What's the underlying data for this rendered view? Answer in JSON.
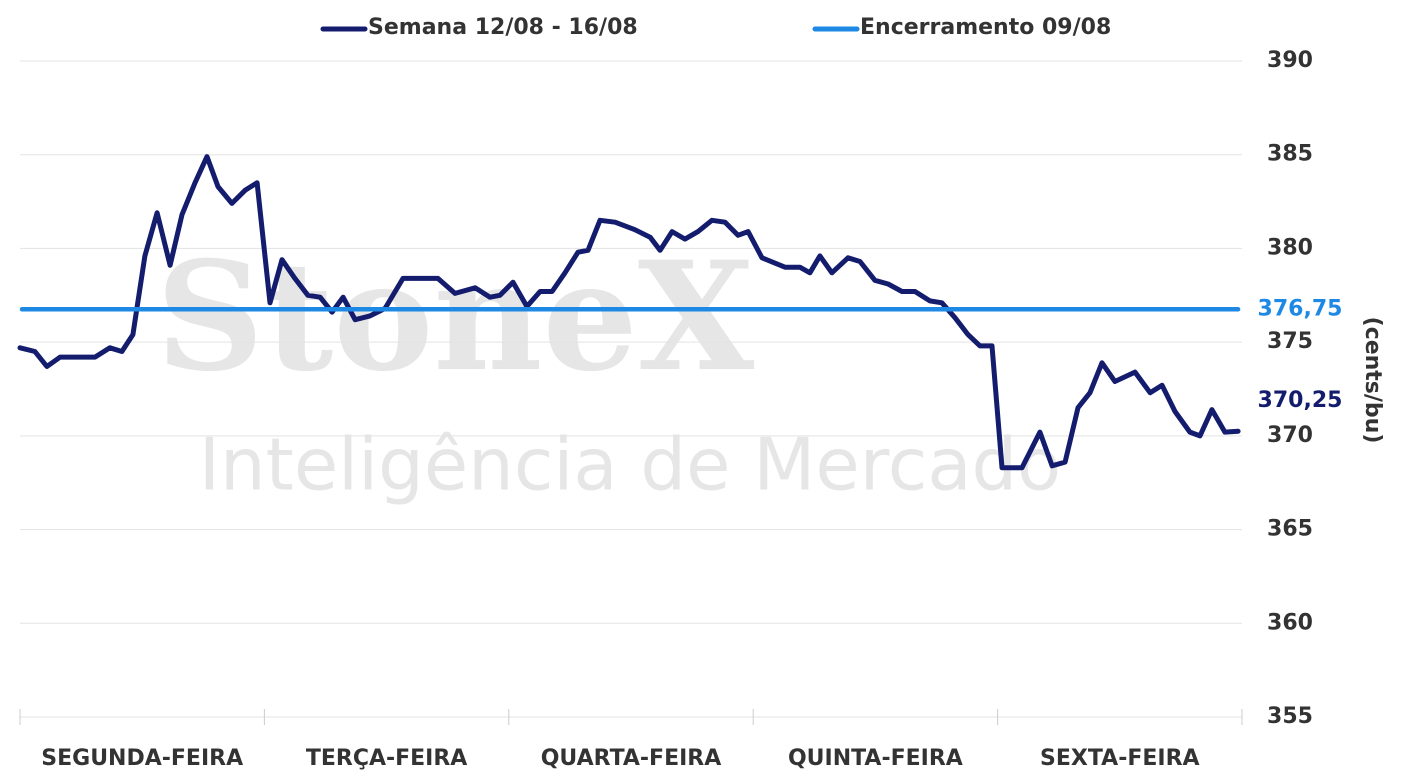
{
  "chart_data": {
    "type": "line",
    "watermark": [
      "StoneX",
      "Inteligência de Mercado"
    ],
    "categories": [
      "SEGUNDA-FEIRA",
      "TERÇA-FEIRA",
      "QUARTA-FEIRA",
      "QUINTA-FEIRA",
      "SEXTA-FEIRA"
    ],
    "y_label": "(cents/bu)",
    "xlim": [
      0,
      5
    ],
    "xticks": [
      0,
      1,
      2,
      3,
      4,
      5
    ],
    "ylim": [
      355,
      390
    ],
    "yticks": [
      355,
      360,
      365,
      370,
      375,
      380,
      385,
      390
    ],
    "grid": true,
    "legend": "top",
    "series": [
      {
        "name": "Semana 12/08 - 16/08",
        "color": "#141c6e",
        "end_label": "370,25",
        "x": [
          0,
          0.061,
          0.11,
          0.164,
          0.225,
          0.307,
          0.368,
          0.417,
          0.462,
          0.511,
          0.561,
          0.614,
          0.663,
          0.716,
          0.765,
          0.81,
          0.867,
          0.921,
          0.97,
          1.023,
          1.072,
          1.125,
          1.178,
          1.228,
          1.277,
          1.322,
          1.371,
          1.432,
          1.494,
          1.567,
          1.637,
          1.71,
          1.78,
          1.862,
          1.923,
          1.964,
          2.017,
          2.074,
          2.128,
          2.177,
          2.23,
          2.283,
          2.324,
          2.373,
          2.435,
          2.516,
          2.578,
          2.619,
          2.668,
          2.721,
          2.774,
          2.831,
          2.885,
          2.938,
          2.979,
          3.036,
          3.13,
          3.191,
          3.232,
          3.273,
          3.322,
          3.388,
          3.437,
          3.498,
          3.552,
          3.609,
          3.662,
          3.723,
          3.772,
          3.826,
          3.879,
          3.928,
          3.977,
          4.018,
          4.1,
          4.173,
          4.223,
          4.276,
          4.329,
          4.378,
          4.427,
          4.48,
          4.562,
          4.624,
          4.673,
          4.726,
          4.787,
          4.828,
          4.877,
          4.93,
          4.984
        ],
        "values": [
          374.7,
          374.5,
          373.7,
          374.2,
          374.2,
          374.2,
          374.7,
          374.5,
          375.4,
          379.6,
          381.9,
          379.1,
          381.8,
          383.5,
          384.9,
          383.3,
          382.4,
          383.1,
          383.5,
          377.1,
          379.4,
          378.4,
          377.5,
          377.4,
          376.6,
          377.4,
          376.2,
          376.4,
          376.8,
          378.4,
          378.4,
          378.4,
          377.6,
          377.9,
          377.4,
          377.5,
          378.2,
          376.9,
          377.7,
          377.7,
          378.7,
          379.8,
          379.9,
          381.5,
          381.4,
          381.0,
          380.6,
          379.9,
          380.9,
          380.5,
          380.9,
          381.5,
          381.4,
          380.7,
          380.9,
          379.5,
          379.0,
          379.0,
          378.7,
          379.6,
          378.7,
          379.5,
          379.3,
          378.3,
          378.1,
          377.7,
          377.7,
          377.2,
          377.1,
          376.3,
          375.4,
          374.8,
          374.8,
          368.3,
          368.3,
          370.2,
          368.4,
          368.6,
          371.5,
          372.3,
          373.9,
          372.9,
          373.4,
          372.3,
          372.7,
          371.3,
          370.2,
          370.0,
          371.4,
          370.2,
          370.25
        ]
      },
      {
        "name": "Encerramento 09/08",
        "color": "#1e88e5",
        "end_label": "376,75",
        "x": [
          0.008,
          4.984
        ],
        "values": [
          376.75,
          376.75
        ]
      }
    ]
  }
}
